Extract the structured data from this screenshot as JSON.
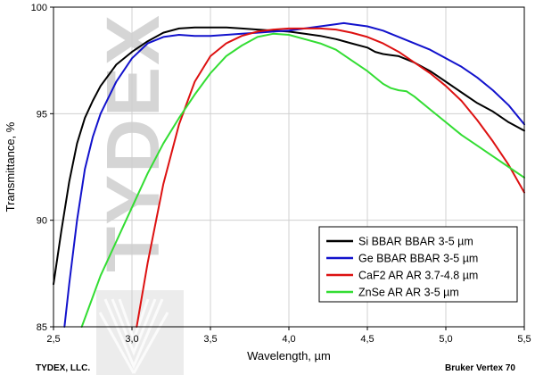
{
  "chart_data": {
    "type": "line",
    "xlabel": "Wavelength, µm",
    "ylabel": "Transmittance, %",
    "xlim": [
      2.5,
      5.5
    ],
    "ylim": [
      85,
      100
    ],
    "xticks": [
      "2,5",
      "3,0",
      "3,5",
      "4,0",
      "4,5",
      "5,0",
      "5,5"
    ],
    "yticks": [
      "85",
      "90",
      "95",
      "100"
    ],
    "grid": true,
    "legend_position": "bottom-right",
    "series": [
      {
        "name": "Si BBAR BBAR 3-5 µm",
        "color": "#000000",
        "x": [
          2.5,
          2.55,
          2.6,
          2.65,
          2.7,
          2.75,
          2.8,
          2.9,
          3.0,
          3.1,
          3.2,
          3.3,
          3.4,
          3.5,
          3.6,
          3.7,
          3.8,
          3.9,
          4.0,
          4.1,
          4.2,
          4.3,
          4.4,
          4.5,
          4.55,
          4.6,
          4.65,
          4.7,
          4.8,
          4.9,
          5.0,
          5.1,
          5.2,
          5.3,
          5.4,
          5.5
        ],
        "y": [
          87.0,
          89.5,
          91.8,
          93.6,
          94.8,
          95.6,
          96.3,
          97.3,
          97.9,
          98.4,
          98.8,
          99.0,
          99.05,
          99.05,
          99.05,
          99.0,
          98.95,
          98.9,
          98.85,
          98.75,
          98.65,
          98.5,
          98.3,
          98.1,
          97.9,
          97.8,
          97.75,
          97.7,
          97.4,
          97.0,
          96.5,
          96.0,
          95.5,
          95.1,
          94.6,
          94.2
        ]
      },
      {
        "name": "Ge BBAR BBAR 3-5 µm",
        "color": "#1212cc",
        "x": [
          2.57,
          2.6,
          2.65,
          2.7,
          2.75,
          2.8,
          2.9,
          3.0,
          3.1,
          3.2,
          3.3,
          3.4,
          3.5,
          3.6,
          3.7,
          3.8,
          3.9,
          4.0,
          4.1,
          4.2,
          4.3,
          4.35,
          4.4,
          4.5,
          4.6,
          4.7,
          4.8,
          4.9,
          5.0,
          5.1,
          5.2,
          5.3,
          5.4,
          5.5
        ],
        "y": [
          85.0,
          87.0,
          90.0,
          92.4,
          93.9,
          95.0,
          96.5,
          97.6,
          98.3,
          98.6,
          98.7,
          98.65,
          98.65,
          98.7,
          98.75,
          98.8,
          98.85,
          98.9,
          99.0,
          99.1,
          99.2,
          99.25,
          99.2,
          99.1,
          98.9,
          98.6,
          98.3,
          98.0,
          97.6,
          97.2,
          96.7,
          96.1,
          95.4,
          94.5
        ]
      },
      {
        "name": "CaF2 AR AR 3.7-4.8 µm",
        "color": "#dd1111",
        "x": [
          3.03,
          3.1,
          3.2,
          3.3,
          3.4,
          3.5,
          3.6,
          3.7,
          3.8,
          3.9,
          4.0,
          4.1,
          4.2,
          4.3,
          4.4,
          4.5,
          4.6,
          4.7,
          4.8,
          4.9,
          5.0,
          5.1,
          5.2,
          5.3,
          5.4,
          5.5
        ],
        "y": [
          85.0,
          88.0,
          91.7,
          94.5,
          96.5,
          97.7,
          98.3,
          98.65,
          98.85,
          98.95,
          99.0,
          99.0,
          99.0,
          98.95,
          98.8,
          98.6,
          98.3,
          97.9,
          97.4,
          96.9,
          96.3,
          95.6,
          94.7,
          93.7,
          92.6,
          91.3
        ]
      },
      {
        "name": "ZnSe AR AR 3-5 µm",
        "color": "#33dd33",
        "x": [
          2.68,
          2.75,
          2.8,
          2.9,
          3.0,
          3.1,
          3.2,
          3.3,
          3.4,
          3.5,
          3.6,
          3.7,
          3.8,
          3.9,
          4.0,
          4.1,
          4.2,
          4.3,
          4.4,
          4.5,
          4.6,
          4.65,
          4.7,
          4.75,
          4.8,
          4.9,
          5.0,
          5.1,
          5.2,
          5.3,
          5.4,
          5.5
        ],
        "y": [
          85.0,
          86.4,
          87.4,
          89.0,
          90.6,
          92.2,
          93.6,
          94.8,
          95.9,
          96.9,
          97.7,
          98.2,
          98.6,
          98.75,
          98.7,
          98.5,
          98.3,
          98.0,
          97.5,
          97.0,
          96.4,
          96.2,
          96.1,
          96.05,
          95.8,
          95.2,
          94.6,
          94.0,
          93.5,
          93.0,
          92.5,
          92.0
        ]
      }
    ]
  },
  "watermark": {
    "text": "TYDEX"
  },
  "footer": {
    "left": "TYDEX, LLC.",
    "right": "Bruker Vertex 70"
  }
}
